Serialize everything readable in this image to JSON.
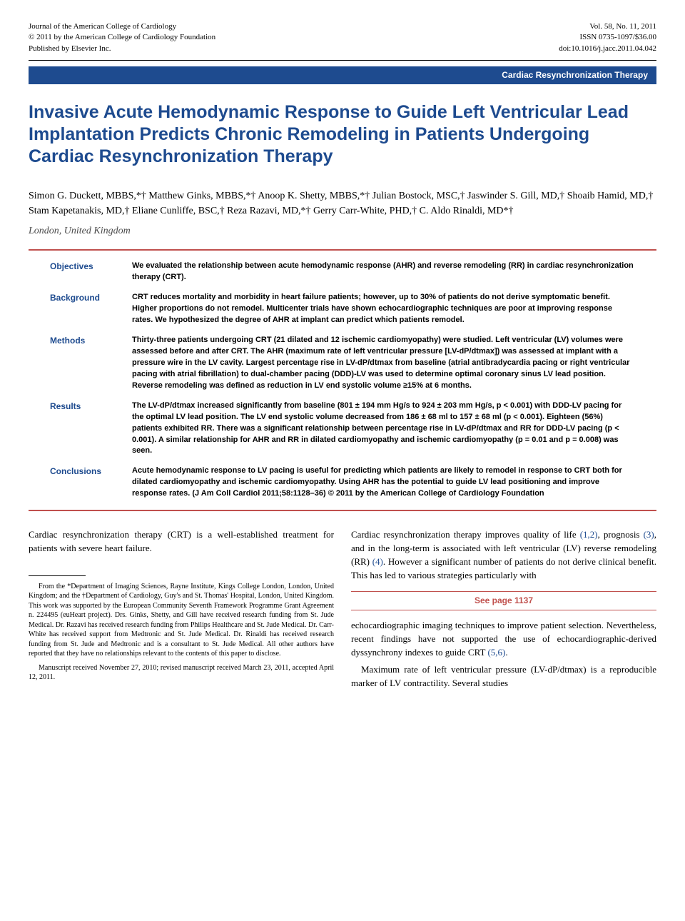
{
  "header": {
    "left_line1": "Journal of the American College of Cardiology",
    "left_line2": "© 2011 by the American College of Cardiology Foundation",
    "left_line3": "Published by Elsevier Inc.",
    "right_line1": "Vol. 58, No. 11, 2011",
    "right_line2": "ISSN 0735-1097/$36.00",
    "right_line3": "doi:10.1016/j.jacc.2011.04.042"
  },
  "bar_label": "Cardiac Resynchronization Therapy",
  "title": "Invasive Acute Hemodynamic Response to Guide Left Ventricular Lead Implantation Predicts Chronic Remodeling in Patients Undergoing Cardiac Resynchronization Therapy",
  "authors": "Simon G. Duckett, MBBS,*† Matthew Ginks, MBBS,*† Anoop K. Shetty, MBBS,*† Julian Bostock, MSC,† Jaswinder S. Gill, MD,† Shoaib Hamid, MD,† Stam Kapetanakis, MD,† Eliane Cunliffe, BSC,† Reza Razavi, MD,*† Gerry Carr-White, PHD,† C. Aldo Rinaldi, MD*†",
  "location": "London, United Kingdom",
  "abstract": {
    "objectives": {
      "label": "Objectives",
      "text": "We evaluated the relationship between acute hemodynamic response (AHR) and reverse remodeling (RR) in cardiac resynchronization therapy (CRT)."
    },
    "background": {
      "label": "Background",
      "text": "CRT reduces mortality and morbidity in heart failure patients; however, up to 30% of patients do not derive symptomatic benefit. Higher proportions do not remodel. Multicenter trials have shown echocardiographic techniques are poor at improving response rates. We hypothesized the degree of AHR at implant can predict which patients remodel."
    },
    "methods": {
      "label": "Methods",
      "text": "Thirty-three patients undergoing CRT (21 dilated and 12 ischemic cardiomyopathy) were studied. Left ventricular (LV) volumes were assessed before and after CRT. The AHR (maximum rate of left ventricular pressure [LV-dP/dtmax]) was assessed at implant with a pressure wire in the LV cavity. Largest percentage rise in LV-dP/dtmax from baseline (atrial antibradycardia pacing or right ventricular pacing with atrial fibrillation) to dual-chamber pacing (DDD)-LV was used to determine optimal coronary sinus LV lead position. Reverse remodeling was defined as reduction in LV end systolic volume ≥15% at 6 months."
    },
    "results": {
      "label": "Results",
      "text": "The LV-dP/dtmax increased significantly from baseline (801 ± 194 mm Hg/s to 924 ± 203 mm Hg/s, p < 0.001) with DDD-LV pacing for the optimal LV lead position. The LV end systolic volume decreased from 186 ± 68 ml to 157 ± 68 ml (p < 0.001). Eighteen (56%) patients exhibited RR. There was a significant relationship between percentage rise in LV-dP/dtmax and RR for DDD-LV pacing (p < 0.001). A similar relationship for AHR and RR in dilated cardiomyopathy and ischemic cardiomyopathy (p = 0.01 and p = 0.008) was seen."
    },
    "conclusions": {
      "label": "Conclusions",
      "text": "Acute hemodynamic response to LV pacing is useful for predicting which patients are likely to remodel in response to CRT both for dilated cardiomyopathy and ischemic cardiomyopathy. Using AHR has the potential to guide LV lead positioning and improve response rates.   (J Am Coll Cardiol 2011;58:1128–36) © 2011 by the American College of Cardiology Foundation"
    }
  },
  "body": {
    "left_p1": "Cardiac resynchronization therapy (CRT) is a well-established treatment for patients with severe heart failure.",
    "footnote_p1": "From the *Department of Imaging Sciences, Rayne Institute, Kings College London, London, United Kingdom; and the †Department of Cardiology, Guy's and St. Thomas' Hospital, London, United Kingdom. This work was supported by the European Community Seventh Framework Programme Grant Agreement n. 224495 (euHeart project). Drs. Ginks, Shetty, and Gill have received research funding from St. Jude Medical. Dr. Razavi has received research funding from Philips Healthcare and St. Jude Medical. Dr. Carr-White has received support from Medtronic and St. Jude Medical. Dr. Rinaldi has received research funding from St. Jude and Medtronic and is a consultant to St. Jude Medical. All other authors have reported that they have no relationships relevant to the contents of this paper to disclose.",
    "footnote_p2": "Manuscript received November 27, 2010; revised manuscript received March 23, 2011, accepted April 12, 2011.",
    "right_p1_a": "Cardiac resynchronization therapy improves quality of life ",
    "right_p1_ref1": "(1,2)",
    "right_p1_b": ", prognosis ",
    "right_p1_ref2": "(3)",
    "right_p1_c": ", and in the long-term is associated with left ventricular (LV) reverse remodeling (RR) ",
    "right_p1_ref3": "(4)",
    "right_p1_d": ". However a significant number of patients do not derive clinical benefit. This has led to various strategies particularly with",
    "see_page": "See page 1137",
    "right_p2_a": "echocardiographic imaging techniques to improve patient selection. Nevertheless, recent findings have not supported the use of echocardiographic-derived dyssynchrony indexes to guide CRT ",
    "right_p2_ref": "(5,6)",
    "right_p2_b": ".",
    "right_p3": "Maximum rate of left ventricular pressure (LV-dP/dtmax) is a reproducible marker of LV contractility. Several studies"
  },
  "colors": {
    "blue": "#1e4b8f",
    "red": "#c0504d",
    "background": "#ffffff",
    "text": "#000000"
  },
  "typography": {
    "title_size": 25,
    "body_size": 13,
    "abstract_size": 11,
    "header_size": 11,
    "footnote_size": 10
  }
}
